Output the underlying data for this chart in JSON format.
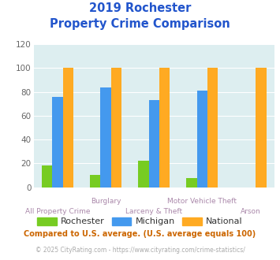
{
  "title_line1": "2019 Rochester",
  "title_line2": "Property Crime Comparison",
  "categories": [
    "All Property Crime",
    "Burglary",
    "Larceny & Theft",
    "Motor Vehicle Theft",
    "Arson"
  ],
  "categories_row1": [
    "",
    "Burglary",
    "",
    "Motor Vehicle Theft",
    ""
  ],
  "categories_row2": [
    "All Property Crime",
    "",
    "Larceny & Theft",
    "",
    "Arson"
  ],
  "rochester": [
    18,
    10,
    22,
    8,
    0
  ],
  "michigan": [
    76,
    84,
    73,
    81,
    0
  ],
  "national": [
    100,
    100,
    100,
    100,
    100
  ],
  "rochester_color": "#77cc22",
  "michigan_color": "#4499ee",
  "national_color": "#ffaa22",
  "background_color": "#ddeef0",
  "ylim": [
    0,
    120
  ],
  "yticks": [
    0,
    20,
    40,
    60,
    80,
    100,
    120
  ],
  "footnote1": "Compared to U.S. average. (U.S. average equals 100)",
  "footnote2": "© 2025 CityRating.com - https://www.cityrating.com/crime-statistics/",
  "title_color": "#2255cc",
  "footnote1_color": "#cc6600",
  "footnote2_color": "#aaaaaa",
  "xlabel_color": "#aa88aa",
  "legend_text_color": "#333333",
  "bar_width": 0.22
}
